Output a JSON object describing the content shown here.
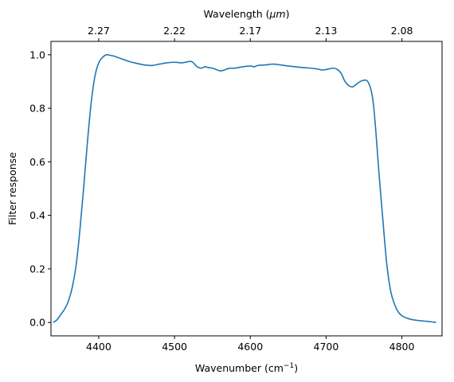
{
  "chart_data": {
    "type": "line",
    "title": "",
    "xlabel": "Wavenumber (cm",
    "xlabel_sup": "−1",
    "xlabel_end": ")",
    "ylabel": "Filter response",
    "top_xlabel_prefix": "Wavelength (",
    "top_xlabel_unit": "μm",
    "top_xlabel_end": ")",
    "xlim": [
      4337,
      4853
    ],
    "ylim": [
      -0.05,
      1.05
    ],
    "xticks": [
      {
        "value": 4400,
        "label": "4400"
      },
      {
        "value": 4500,
        "label": "4500"
      },
      {
        "value": 4600,
        "label": "4600"
      },
      {
        "value": 4700,
        "label": "4700"
      },
      {
        "value": 4800,
        "label": "4800"
      }
    ],
    "yticks": [
      {
        "value": 0.0,
        "label": "0.0"
      },
      {
        "value": 0.2,
        "label": "0.2"
      },
      {
        "value": 0.4,
        "label": "0.4"
      },
      {
        "value": 0.6,
        "label": "0.6"
      },
      {
        "value": 0.8,
        "label": "0.8"
      },
      {
        "value": 1.0,
        "label": "1.0"
      }
    ],
    "top_xticks": [
      {
        "value": 4400,
        "label": "2.27"
      },
      {
        "value": 4500,
        "label": "2.22"
      },
      {
        "value": 4600,
        "label": "2.17"
      },
      {
        "value": 4700,
        "label": "2.13"
      },
      {
        "value": 4800,
        "label": "2.08"
      }
    ],
    "grid": false,
    "color": "#1f77b4",
    "series": [
      {
        "x": [
          4340,
          4345,
          4350,
          4355,
          4360,
          4365,
          4370,
          4375,
          4380,
          4385,
          4390,
          4395,
          4400,
          4405,
          4410,
          4415,
          4420,
          4425,
          4430,
          4440,
          4450,
          4460,
          4470,
          4480,
          4490,
          4500,
          4510,
          4520,
          4524,
          4530,
          4535,
          4540,
          4545,
          4550,
          4555,
          4560,
          4565,
          4570,
          4575,
          4580,
          4590,
          4600,
          4605,
          4610,
          4620,
          4630,
          4640,
          4650,
          4660,
          4670,
          4680,
          4690,
          4695,
          4700,
          4705,
          4710,
          4715,
          4720,
          4725,
          4730,
          4735,
          4740,
          4745,
          4750,
          4755,
          4760,
          4763,
          4766,
          4770,
          4775,
          4780,
          4785,
          4790,
          4795,
          4800,
          4805,
          4810,
          4815,
          4820,
          4830,
          4840,
          4845
        ],
        "y": [
          0.0,
          0.01,
          0.03,
          0.05,
          0.08,
          0.13,
          0.21,
          0.34,
          0.5,
          0.67,
          0.82,
          0.92,
          0.97,
          0.99,
          1.0,
          0.998,
          0.995,
          0.99,
          0.985,
          0.975,
          0.968,
          0.962,
          0.96,
          0.965,
          0.97,
          0.972,
          0.97,
          0.975,
          0.972,
          0.955,
          0.95,
          0.955,
          0.952,
          0.95,
          0.945,
          0.94,
          0.942,
          0.948,
          0.95,
          0.95,
          0.955,
          0.958,
          0.955,
          0.96,
          0.962,
          0.965,
          0.962,
          0.958,
          0.955,
          0.952,
          0.95,
          0.946,
          0.943,
          0.945,
          0.948,
          0.95,
          0.945,
          0.93,
          0.9,
          0.885,
          0.88,
          0.89,
          0.9,
          0.905,
          0.9,
          0.86,
          0.8,
          0.7,
          0.55,
          0.38,
          0.22,
          0.12,
          0.07,
          0.04,
          0.025,
          0.018,
          0.013,
          0.01,
          0.008,
          0.005,
          0.002,
          0.0
        ]
      }
    ]
  }
}
